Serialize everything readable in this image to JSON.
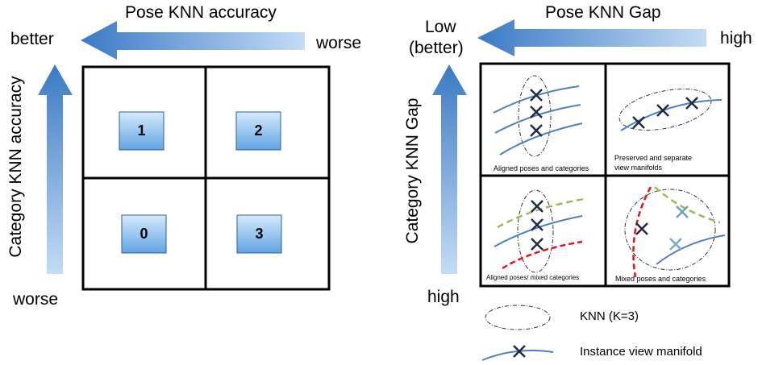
{
  "left_panel": {
    "top_arrow_label": "Pose KNN accuracy",
    "top_left_label": "better",
    "top_right_label": "worse",
    "side_arrow_label": "Category KNN accuracy",
    "bottom_label": "worse",
    "cells": [
      {
        "number": "1"
      },
      {
        "number": "2"
      },
      {
        "number": "0"
      },
      {
        "number": "3"
      }
    ]
  },
  "right_panel": {
    "top_arrow_label": "Pose KNN Gap",
    "top_left_label_line1": "Low",
    "top_left_label_line2": "(better)",
    "top_right_label": "high",
    "side_arrow_label": "Category KNN Gap",
    "bottom_label": "high",
    "cells": [
      {
        "caption": "Aligned poses and categories"
      },
      {
        "caption_line1": "Preserved and separate",
        "caption_line2": "view manifolds"
      },
      {
        "caption": "Aligned poses/ mixed categories"
      },
      {
        "caption": "Mixed poses and categories"
      }
    ]
  },
  "legend": {
    "knn_label": "KNN (K=3)",
    "manifold_label": "Instance view manifold"
  },
  "colors": {
    "arrow_dark": "#3d7fc8",
    "arrow_light": "#bcd6f2",
    "manifold_blue": "#4f81bd",
    "red_dashed": "#e3141b",
    "green_dashed": "#9bbb59",
    "cross_dark": "#1f2a44"
  }
}
